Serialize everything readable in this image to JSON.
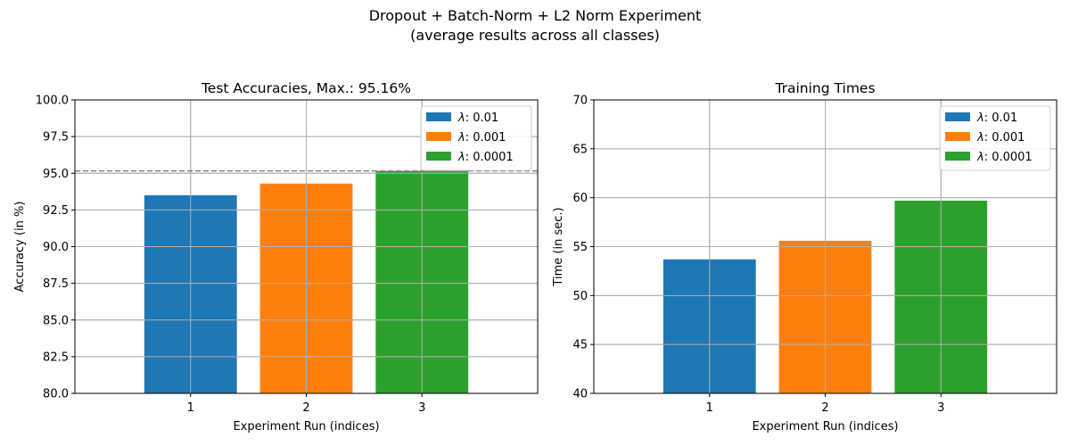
{
  "figure": {
    "title_line1": "Dropout + Batch-Norm + L2 Norm Experiment",
    "title_line2": "(average results across all classes)"
  },
  "chart_data": [
    {
      "type": "bar",
      "title": "Test Accuracies, Max.: 95.16%",
      "xlabel": "Experiment Run (indices)",
      "ylabel": "Accuracy (in %)",
      "categories": [
        "1",
        "2",
        "3"
      ],
      "ylim": [
        80,
        100
      ],
      "yticks": [
        "80.0",
        "82.5",
        "85.0",
        "87.5",
        "90.0",
        "92.5",
        "95.0",
        "97.5",
        "100.0"
      ],
      "grid": true,
      "legend_position": "top-right",
      "reference_line": {
        "value": 95.16,
        "style": "dashed",
        "color": "#808080"
      },
      "series": [
        {
          "name": "λ: 0.01",
          "lambda_symbol": "λ",
          "lambda_value": ": 0.01",
          "x": "1",
          "value": 93.5,
          "color": "#1f77b4"
        },
        {
          "name": "λ: 0.001",
          "lambda_symbol": "λ",
          "lambda_value": ": 0.001",
          "x": "2",
          "value": 94.3,
          "color": "#ff7f0e"
        },
        {
          "name": "λ: 0.0001",
          "lambda_symbol": "λ",
          "lambda_value": ": 0.0001",
          "x": "3",
          "value": 95.16,
          "color": "#2ca02c"
        }
      ]
    },
    {
      "type": "bar",
      "title": "Training Times",
      "xlabel": "Experiment Run (indices)",
      "ylabel": "Time (in sec.)",
      "categories": [
        "1",
        "2",
        "3"
      ],
      "ylim": [
        40,
        70
      ],
      "yticks": [
        "40",
        "45",
        "50",
        "55",
        "60",
        "65",
        "70"
      ],
      "grid": true,
      "legend_position": "top-right",
      "series": [
        {
          "name": "λ: 0.01",
          "lambda_symbol": "λ",
          "lambda_value": ": 0.01",
          "x": "1",
          "value": 53.7,
          "color": "#1f77b4"
        },
        {
          "name": "λ: 0.001",
          "lambda_symbol": "λ",
          "lambda_value": ": 0.001",
          "x": "2",
          "value": 55.6,
          "color": "#ff7f0e"
        },
        {
          "name": "λ: 0.0001",
          "lambda_symbol": "λ",
          "lambda_value": ": 0.0001",
          "x": "3",
          "value": 59.7,
          "color": "#2ca02c"
        }
      ]
    }
  ]
}
